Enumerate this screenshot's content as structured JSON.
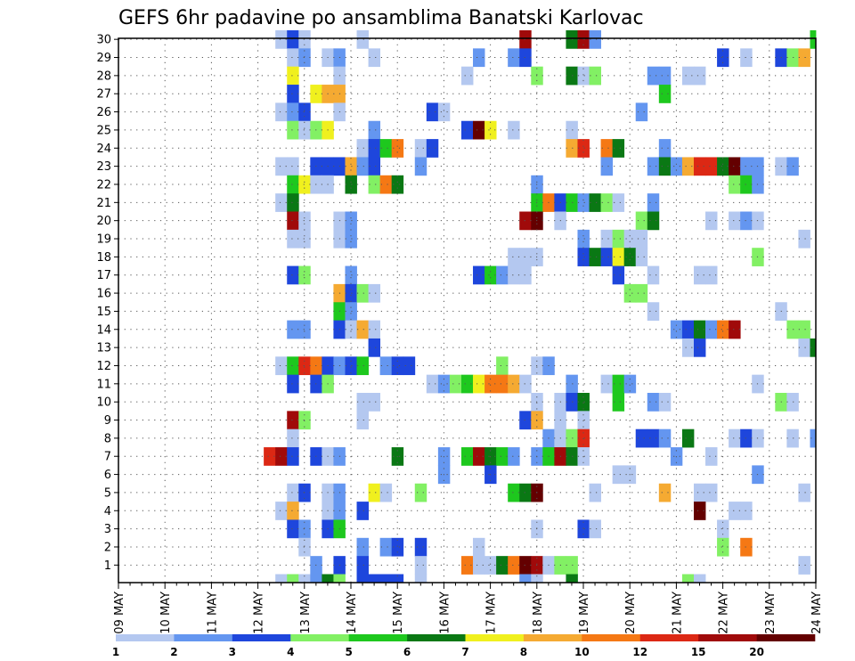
{
  "chart_data": {
    "type": "heatmap",
    "title": "GEFS 6hr padavine po ansamblima Banatski Karlovac",
    "y_members": [
      1,
      2,
      3,
      4,
      5,
      6,
      7,
      8,
      9,
      10,
      11,
      12,
      13,
      14,
      15,
      16,
      17,
      18,
      19,
      20,
      21,
      22,
      23,
      24,
      25,
      26,
      27,
      28,
      29,
      30
    ],
    "y_tick_labels": [
      "1",
      "2",
      "3",
      "4",
      "5",
      "6",
      "7",
      "8",
      "9",
      "10",
      "11",
      "12",
      "13",
      "14",
      "15",
      "16",
      "17",
      "18",
      "19",
      "20",
      "21",
      "22",
      "23",
      "24",
      "25",
      "26",
      "27",
      "28",
      "29",
      "30"
    ],
    "x_tick_labels": [
      "09 MAY",
      "10 MAY",
      "11 MAY",
      "12 MAY",
      "13 MAY",
      "14 MAY",
      "15 MAY",
      "16 MAY",
      "17 MAY",
      "18 MAY",
      "19 MAY",
      "20 MAY",
      "21 MAY",
      "22 MAY",
      "23 MAY",
      "24 MAY"
    ],
    "x_steps": 61,
    "step_hours": 6,
    "grid": true,
    "legend": {
      "labels": [
        "1",
        "2",
        "3",
        "4",
        "5",
        "6",
        "7",
        "8",
        "10",
        "12",
        "15",
        "20"
      ],
      "colors": [
        "#b4c8f0",
        "#6496f0",
        "#1e46dc",
        "#82f064",
        "#1ec81e",
        "#0a7814",
        "#f0f01e",
        "#f5aa32",
        "#f57814",
        "#dc2814",
        "#a00a0a",
        "#640000"
      ],
      "placement": "bottom"
    },
    "cells": [
      [
        30,
        14,
        0
      ],
      [
        30,
        15,
        2
      ],
      [
        30,
        16,
        0
      ],
      [
        30,
        21,
        0
      ],
      [
        30,
        35,
        10
      ],
      [
        30,
        39,
        5
      ],
      [
        30,
        40,
        10
      ],
      [
        30,
        41,
        1
      ],
      [
        30,
        60,
        4
      ],
      [
        29,
        15,
        0
      ],
      [
        29,
        16,
        1
      ],
      [
        29,
        18,
        0
      ],
      [
        29,
        19,
        1
      ],
      [
        29,
        22,
        0
      ],
      [
        29,
        31,
        1
      ],
      [
        29,
        34,
        1
      ],
      [
        29,
        35,
        2
      ],
      [
        29,
        52,
        2
      ],
      [
        29,
        54,
        0
      ],
      [
        29,
        57,
        2
      ],
      [
        29,
        58,
        3
      ],
      [
        29,
        59,
        7
      ],
      [
        28,
        15,
        6
      ],
      [
        28,
        19,
        0
      ],
      [
        28,
        30,
        0
      ],
      [
        28,
        36,
        3
      ],
      [
        28,
        39,
        5
      ],
      [
        28,
        40,
        0
      ],
      [
        28,
        41,
        3
      ],
      [
        28,
        46,
        1
      ],
      [
        28,
        47,
        1
      ],
      [
        28,
        49,
        0
      ],
      [
        28,
        50,
        0
      ],
      [
        27,
        15,
        2
      ],
      [
        27,
        17,
        6
      ],
      [
        27,
        18,
        7
      ],
      [
        27,
        19,
        7
      ],
      [
        27,
        47,
        4
      ],
      [
        26,
        14,
        0
      ],
      [
        26,
        15,
        1
      ],
      [
        26,
        16,
        2
      ],
      [
        26,
        19,
        0
      ],
      [
        26,
        27,
        2
      ],
      [
        26,
        28,
        0
      ],
      [
        26,
        45,
        1
      ],
      [
        25,
        15,
        3
      ],
      [
        25,
        16,
        0
      ],
      [
        25,
        17,
        3
      ],
      [
        25,
        18,
        6
      ],
      [
        25,
        22,
        1
      ],
      [
        25,
        30,
        2
      ],
      [
        25,
        31,
        11
      ],
      [
        25,
        32,
        6
      ],
      [
        25,
        34,
        0
      ],
      [
        25,
        39,
        0
      ],
      [
        24,
        21,
        0
      ],
      [
        24,
        22,
        2
      ],
      [
        24,
        23,
        4
      ],
      [
        24,
        24,
        8
      ],
      [
        24,
        26,
        0
      ],
      [
        24,
        27,
        2
      ],
      [
        24,
        39,
        7
      ],
      [
        24,
        40,
        9
      ],
      [
        24,
        42,
        8
      ],
      [
        24,
        43,
        5
      ],
      [
        24,
        47,
        1
      ],
      [
        23,
        14,
        0
      ],
      [
        23,
        15,
        0
      ],
      [
        23,
        17,
        2
      ],
      [
        23,
        18,
        2
      ],
      [
        23,
        19,
        2
      ],
      [
        23,
        20,
        7
      ],
      [
        23,
        21,
        1
      ],
      [
        23,
        22,
        2
      ],
      [
        23,
        26,
        1
      ],
      [
        23,
        42,
        1
      ],
      [
        23,
        46,
        1
      ],
      [
        23,
        47,
        5
      ],
      [
        23,
        48,
        1
      ],
      [
        23,
        49,
        7
      ],
      [
        23,
        50,
        9
      ],
      [
        23,
        51,
        9
      ],
      [
        23,
        52,
        5
      ],
      [
        23,
        53,
        11
      ],
      [
        23,
        54,
        1
      ],
      [
        23,
        55,
        1
      ],
      [
        23,
        57,
        0
      ],
      [
        23,
        58,
        1
      ],
      [
        22,
        15,
        4
      ],
      [
        22,
        16,
        6
      ],
      [
        22,
        17,
        0
      ],
      [
        22,
        18,
        0
      ],
      [
        22,
        20,
        5
      ],
      [
        22,
        22,
        3
      ],
      [
        22,
        23,
        8
      ],
      [
        22,
        24,
        5
      ],
      [
        22,
        36,
        1
      ],
      [
        22,
        53,
        3
      ],
      [
        22,
        54,
        4
      ],
      [
        22,
        55,
        1
      ],
      [
        21,
        14,
        0
      ],
      [
        21,
        15,
        5
      ],
      [
        21,
        36,
        4
      ],
      [
        21,
        37,
        8
      ],
      [
        21,
        38,
        2
      ],
      [
        21,
        39,
        4
      ],
      [
        21,
        40,
        1
      ],
      [
        21,
        41,
        5
      ],
      [
        21,
        42,
        3
      ],
      [
        21,
        43,
        0
      ],
      [
        21,
        46,
        1
      ],
      [
        20,
        15,
        10
      ],
      [
        20,
        16,
        0
      ],
      [
        20,
        19,
        0
      ],
      [
        20,
        20,
        1
      ],
      [
        20,
        35,
        10
      ],
      [
        20,
        36,
        11
      ],
      [
        20,
        38,
        0
      ],
      [
        20,
        45,
        3
      ],
      [
        20,
        46,
        5
      ],
      [
        20,
        51,
        0
      ],
      [
        20,
        53,
        0
      ],
      [
        20,
        54,
        1
      ],
      [
        20,
        55,
        0
      ],
      [
        19,
        15,
        0
      ],
      [
        19,
        16,
        0
      ],
      [
        19,
        19,
        0
      ],
      [
        19,
        20,
        1
      ],
      [
        19,
        40,
        1
      ],
      [
        19,
        42,
        0
      ],
      [
        19,
        43,
        3
      ],
      [
        19,
        44,
        0
      ],
      [
        19,
        45,
        0
      ],
      [
        19,
        59,
        0
      ],
      [
        18,
        34,
        0
      ],
      [
        18,
        35,
        0
      ],
      [
        18,
        36,
        0
      ],
      [
        18,
        40,
        2
      ],
      [
        18,
        41,
        5
      ],
      [
        18,
        42,
        2
      ],
      [
        18,
        43,
        6
      ],
      [
        18,
        44,
        5
      ],
      [
        18,
        45,
        0
      ],
      [
        18,
        55,
        3
      ],
      [
        17,
        15,
        2
      ],
      [
        17,
        16,
        3
      ],
      [
        17,
        20,
        1
      ],
      [
        17,
        31,
        2
      ],
      [
        17,
        32,
        4
      ],
      [
        17,
        33,
        1
      ],
      [
        17,
        34,
        0
      ],
      [
        17,
        35,
        0
      ],
      [
        17,
        43,
        2
      ],
      [
        17,
        46,
        0
      ],
      [
        17,
        50,
        0
      ],
      [
        17,
        51,
        0
      ],
      [
        16,
        19,
        7
      ],
      [
        16,
        20,
        2
      ],
      [
        16,
        21,
        3
      ],
      [
        16,
        22,
        0
      ],
      [
        16,
        44,
        3
      ],
      [
        16,
        45,
        3
      ],
      [
        15,
        19,
        4
      ],
      [
        15,
        20,
        1
      ],
      [
        15,
        46,
        0
      ],
      [
        15,
        57,
        0
      ],
      [
        14,
        15,
        1
      ],
      [
        14,
        16,
        1
      ],
      [
        14,
        19,
        2
      ],
      [
        14,
        20,
        0
      ],
      [
        14,
        21,
        7
      ],
      [
        14,
        22,
        0
      ],
      [
        14,
        48,
        1
      ],
      [
        14,
        49,
        2
      ],
      [
        14,
        50,
        5
      ],
      [
        14,
        51,
        1
      ],
      [
        14,
        52,
        8
      ],
      [
        14,
        53,
        10
      ],
      [
        14,
        58,
        3
      ],
      [
        14,
        59,
        3
      ],
      [
        13,
        22,
        2
      ],
      [
        13,
        49,
        0
      ],
      [
        13,
        50,
        2
      ],
      [
        13,
        59,
        0
      ],
      [
        13,
        60,
        5
      ],
      [
        12,
        14,
        0
      ],
      [
        12,
        15,
        4
      ],
      [
        12,
        16,
        9
      ],
      [
        12,
        17,
        8
      ],
      [
        12,
        18,
        2
      ],
      [
        12,
        19,
        1
      ],
      [
        12,
        20,
        2
      ],
      [
        12,
        21,
        4
      ],
      [
        12,
        23,
        1
      ],
      [
        12,
        24,
        2
      ],
      [
        12,
        25,
        2
      ],
      [
        12,
        33,
        3
      ],
      [
        12,
        36,
        0
      ],
      [
        12,
        37,
        1
      ],
      [
        11,
        15,
        2
      ],
      [
        11,
        17,
        2
      ],
      [
        11,
        18,
        3
      ],
      [
        11,
        27,
        0
      ],
      [
        11,
        28,
        1
      ],
      [
        11,
        29,
        3
      ],
      [
        11,
        30,
        4
      ],
      [
        11,
        31,
        6
      ],
      [
        11,
        32,
        8
      ],
      [
        11,
        33,
        8
      ],
      [
        11,
        34,
        7
      ],
      [
        11,
        35,
        0
      ],
      [
        11,
        39,
        1
      ],
      [
        11,
        42,
        0
      ],
      [
        11,
        43,
        4
      ],
      [
        11,
        44,
        1
      ],
      [
        11,
        55,
        0
      ],
      [
        10,
        21,
        0
      ],
      [
        10,
        22,
        0
      ],
      [
        10,
        36,
        0
      ],
      [
        10,
        38,
        0
      ],
      [
        10,
        39,
        2
      ],
      [
        10,
        40,
        5
      ],
      [
        10,
        43,
        4
      ],
      [
        10,
        46,
        1
      ],
      [
        10,
        47,
        0
      ],
      [
        10,
        57,
        3
      ],
      [
        10,
        58,
        0
      ],
      [
        9,
        15,
        10
      ],
      [
        9,
        16,
        3
      ],
      [
        9,
        21,
        0
      ],
      [
        9,
        35,
        2
      ],
      [
        9,
        36,
        7
      ],
      [
        9,
        38,
        0
      ],
      [
        9,
        40,
        0
      ],
      [
        8,
        15,
        0
      ],
      [
        8,
        37,
        1
      ],
      [
        8,
        38,
        0
      ],
      [
        8,
        39,
        3
      ],
      [
        8,
        40,
        9
      ],
      [
        8,
        45,
        2
      ],
      [
        8,
        46,
        2
      ],
      [
        8,
        47,
        1
      ],
      [
        8,
        49,
        5
      ],
      [
        8,
        53,
        0
      ],
      [
        8,
        54,
        2
      ],
      [
        8,
        55,
        0
      ],
      [
        8,
        58,
        0
      ],
      [
        8,
        60,
        1
      ],
      [
        7,
        13,
        9
      ],
      [
        7,
        14,
        10
      ],
      [
        7,
        15,
        2
      ],
      [
        7,
        17,
        2
      ],
      [
        7,
        18,
        0
      ],
      [
        7,
        19,
        1
      ],
      [
        7,
        24,
        5
      ],
      [
        7,
        28,
        1
      ],
      [
        7,
        30,
        4
      ],
      [
        7,
        31,
        10
      ],
      [
        7,
        32,
        5
      ],
      [
        7,
        33,
        4
      ],
      [
        7,
        34,
        1
      ],
      [
        7,
        36,
        1
      ],
      [
        7,
        37,
        4
      ],
      [
        7,
        38,
        10
      ],
      [
        7,
        39,
        5
      ],
      [
        7,
        40,
        0
      ],
      [
        7,
        48,
        1
      ],
      [
        7,
        51,
        0
      ],
      [
        6,
        28,
        1
      ],
      [
        6,
        32,
        2
      ],
      [
        6,
        43,
        0
      ],
      [
        6,
        44,
        0
      ],
      [
        6,
        55,
        1
      ],
      [
        5,
        15,
        0
      ],
      [
        5,
        16,
        2
      ],
      [
        5,
        18,
        0
      ],
      [
        5,
        19,
        1
      ],
      [
        5,
        22,
        6
      ],
      [
        5,
        23,
        0
      ],
      [
        5,
        26,
        3
      ],
      [
        5,
        34,
        4
      ],
      [
        5,
        35,
        5
      ],
      [
        5,
        36,
        11
      ],
      [
        5,
        41,
        0
      ],
      [
        5,
        47,
        7
      ],
      [
        5,
        50,
        0
      ],
      [
        5,
        51,
        0
      ],
      [
        5,
        59,
        0
      ],
      [
        4,
        14,
        0
      ],
      [
        4,
        15,
        7
      ],
      [
        4,
        18,
        0
      ],
      [
        4,
        19,
        1
      ],
      [
        4,
        21,
        2
      ],
      [
        4,
        50,
        11
      ],
      [
        4,
        53,
        0
      ],
      [
        4,
        54,
        0
      ],
      [
        3,
        15,
        2
      ],
      [
        3,
        16,
        1
      ],
      [
        3,
        18,
        2
      ],
      [
        3,
        19,
        4
      ],
      [
        3,
        36,
        0
      ],
      [
        3,
        40,
        2
      ],
      [
        3,
        41,
        0
      ],
      [
        3,
        52,
        0
      ],
      [
        2,
        16,
        0
      ],
      [
        2,
        21,
        1
      ],
      [
        2,
        23,
        1
      ],
      [
        2,
        24,
        2
      ],
      [
        2,
        26,
        2
      ],
      [
        2,
        31,
        0
      ],
      [
        2,
        52,
        3
      ],
      [
        2,
        54,
        8
      ],
      [
        1,
        17,
        1
      ],
      [
        1,
        19,
        2
      ],
      [
        1,
        21,
        2
      ],
      [
        1,
        26,
        0
      ],
      [
        1,
        30,
        8
      ],
      [
        1,
        31,
        0
      ],
      [
        1,
        32,
        0
      ],
      [
        1,
        33,
        5
      ],
      [
        1,
        34,
        8
      ],
      [
        1,
        35,
        11
      ],
      [
        1,
        36,
        10
      ],
      [
        1,
        37,
        0
      ],
      [
        1,
        38,
        3
      ],
      [
        1,
        39,
        3
      ],
      [
        1,
        59,
        0
      ],
      [
        0,
        14,
        0
      ],
      [
        0,
        15,
        3
      ],
      [
        0,
        16,
        0
      ],
      [
        0,
        17,
        1
      ],
      [
        0,
        18,
        5
      ],
      [
        0,
        19,
        3
      ],
      [
        0,
        21,
        2
      ],
      [
        0,
        22,
        2
      ],
      [
        0,
        23,
        2
      ],
      [
        0,
        24,
        2
      ],
      [
        0,
        26,
        0
      ],
      [
        0,
        35,
        1
      ],
      [
        0,
        36,
        0
      ],
      [
        0,
        39,
        5
      ],
      [
        0,
        49,
        3
      ],
      [
        0,
        50,
        0
      ]
    ]
  }
}
